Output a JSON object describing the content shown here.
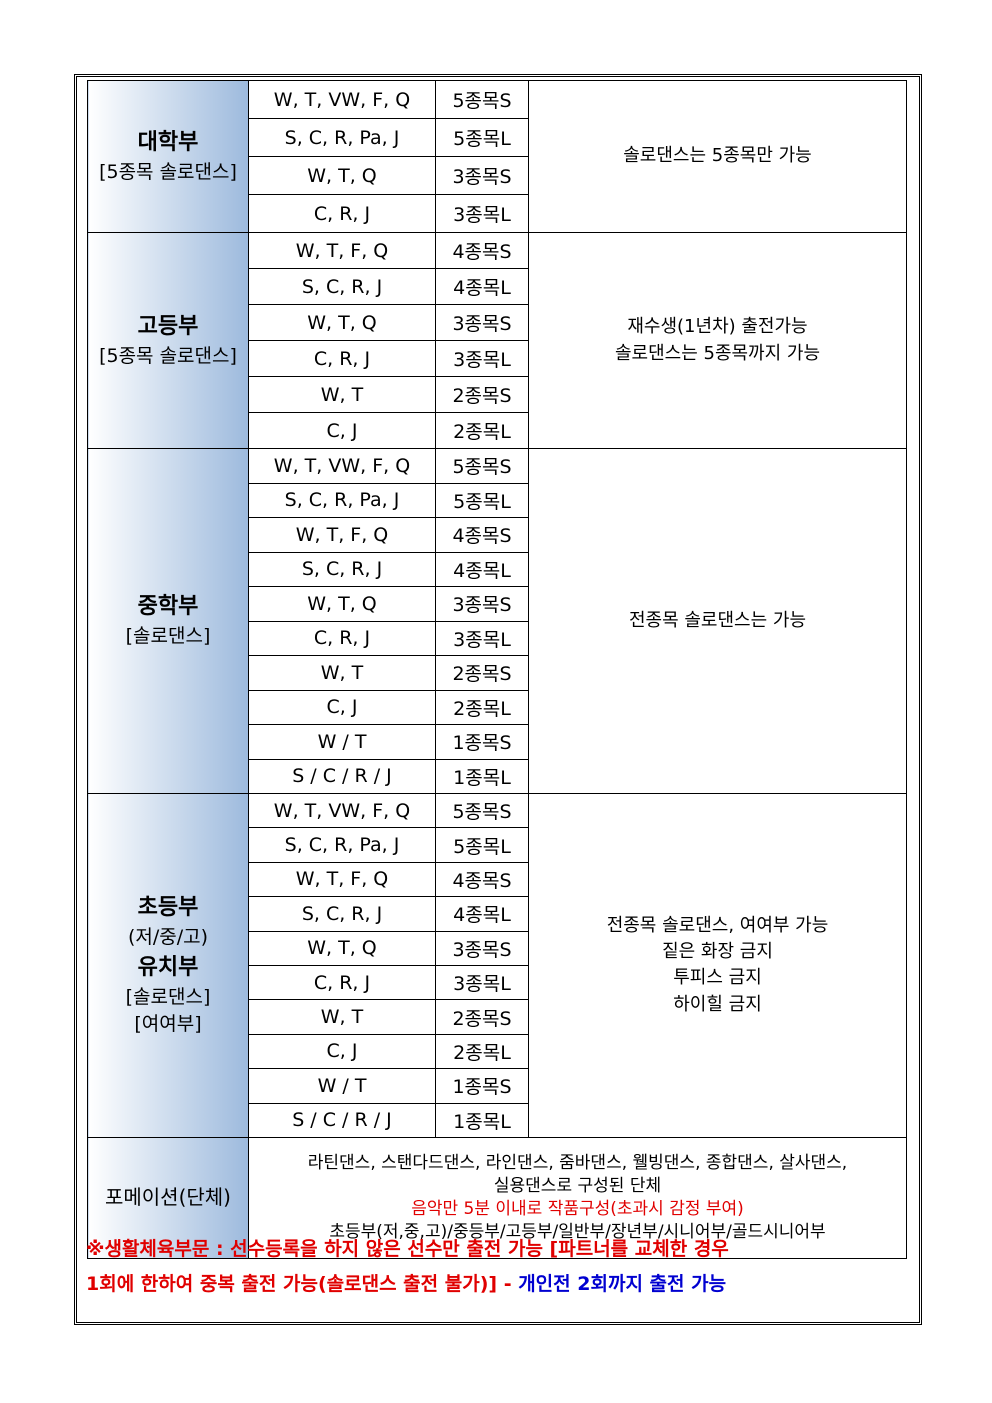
{
  "groups": [
    {
      "title": "대학부",
      "subs": [
        "[5종목 솔로댄스]"
      ],
      "note": [
        "솔로댄스는 5종목만 가능"
      ],
      "rowh": 37,
      "rows": [
        [
          "W, T, VW, F, Q",
          "5종목S"
        ],
        [
          "S, C, R, Pa, J",
          "5종목L"
        ],
        [
          "W, T, Q",
          "3종목S"
        ],
        [
          "C, R, J",
          "3종목L"
        ]
      ]
    },
    {
      "title": "고등부",
      "subs": [
        "[5종목 솔로댄스]"
      ],
      "note": [
        "재수생(1년차) 출전가능",
        "솔로댄스는 5종목까지 가능"
      ],
      "rowh": 35,
      "rows": [
        [
          "W, T, F, Q",
          "4종목S"
        ],
        [
          "S, C, R, J",
          "4종목L"
        ],
        [
          "W, T, Q",
          "3종목S"
        ],
        [
          "C, R, J",
          "3종목L"
        ],
        [
          "W, T",
          "2종목S"
        ],
        [
          "C, J",
          "2종목L"
        ]
      ]
    },
    {
      "title": "중학부",
      "subs": [
        "[솔로댄스]"
      ],
      "note": [
        "전종목 솔로댄스는 가능"
      ],
      "rowh": 33.5,
      "rows": [
        [
          "W, T, VW, F, Q",
          "5종목S"
        ],
        [
          "S, C, R, Pa, J",
          "5종목L"
        ],
        [
          "W, T, F, Q",
          "4종목S"
        ],
        [
          "S, C, R, J",
          "4종목L"
        ],
        [
          "W, T, Q",
          "3종목S"
        ],
        [
          "C, R, J",
          "3종목L"
        ],
        [
          "W, T",
          "2종목S"
        ],
        [
          "C, J",
          "2종목L"
        ],
        [
          "W / T",
          "1종목S"
        ],
        [
          "S / C / R / J",
          "1종목L"
        ]
      ]
    },
    {
      "title": "초등부",
      "subs": [
        "(저/중/고)"
      ],
      "title2": "유치부",
      "subs2": [
        "[솔로댄스]",
        "[여여부]"
      ],
      "note": [
        "전종목 솔로댄스, 여여부 가능",
        "짙은 화장 금지",
        "투피스 금지",
        "하이힐 금지"
      ],
      "rowh": 33.4,
      "rows": [
        [
          "W, T, VW, F, Q",
          "5종목S"
        ],
        [
          "S, C, R, Pa, J",
          "5종목L"
        ],
        [
          "W, T, F, Q",
          "4종목S"
        ],
        [
          "S, C, R, J",
          "4종목L"
        ],
        [
          "W, T, Q",
          "3종목S"
        ],
        [
          "C, R, J",
          "3종목L"
        ],
        [
          "W, T",
          "2종목S"
        ],
        [
          "C, J",
          "2종목L"
        ],
        [
          "W / T",
          "1종목S"
        ],
        [
          "S / C / R / J",
          "1종목L"
        ]
      ]
    }
  ],
  "formation": {
    "title": "포메이션(단체)",
    "line1": "라틴댄스, 스탠다드댄스, 라인댄스, 줌바댄스, 웰빙댄스, 종합댄스, 살사댄스,",
    "line2": "실용댄스로 구성된 단체",
    "line3": "음악만 5분 이내로 작품구성(초과시 감정 부여)",
    "line4": "초등부(저,중,고)/중등부/고등부/일반부/장년부/시니어부/골드시니어부"
  },
  "footer": {
    "red1": "※생활체육부문 : 선수등록을 하지 않은 선수만 출전 가능 [파트너를 교체한 경우",
    "red2": "1회에 한하여 중복 출전 가능(솔로댄스 출전 불가)] - ",
    "blue": "개인전 2회까지 출전 가능"
  },
  "colors": {
    "red": "#e00000",
    "blue": "#0000d0",
    "header_gradient": "#9dbadd"
  }
}
